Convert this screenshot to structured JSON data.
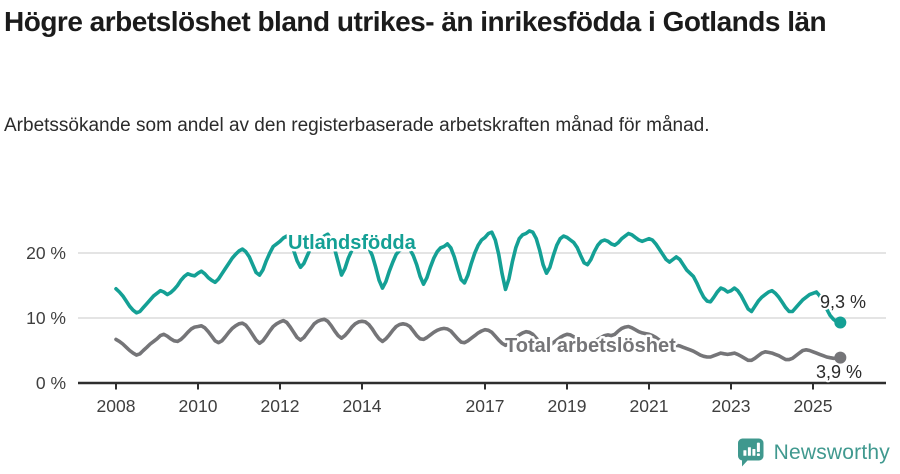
{
  "header": {
    "title": "Högre arbetslöshet bland utrikes- än inrikesfödda i Gotlands län",
    "subtitle": "Arbetssökande som andel av den registerbaserade arbetskraften månad för månad."
  },
  "footer": {
    "brand": "Newsworthy",
    "logo_icon": "bar-chart-speech-bubble-icon"
  },
  "colors": {
    "foreign_born_line": "#14A095",
    "total_line": "#757578",
    "title_text": "#1b1b1b",
    "body_text": "#2b2b2b",
    "axis_line": "#2e2e2e",
    "tick_label": "#3f3f3f",
    "gridline": "#dcdcdc",
    "value_label": "#2b2b2b",
    "brand_teal": "#40998F",
    "background": "#ffffff"
  },
  "chart_data": {
    "type": "line",
    "title": "Högre arbetslöshet bland utrikes- än inrikesfödda i Gotlands län",
    "subtitle": "Arbetssökande som andel av den registerbaserade arbetskraften månad för månad.",
    "x_unit": "month",
    "x_start_year": 2008,
    "x_end_decimal_year": 2025.67,
    "xlim": [
      2007.1,
      2026.1
    ],
    "ylim": [
      0,
      25
    ],
    "grid": "horizontal",
    "legend_position": "inline-labels",
    "x_tick_years": [
      2008,
      2010,
      2012,
      2014,
      2017,
      2019,
      2021,
      2023,
      2025
    ],
    "x_tick_labels": [
      "2008",
      "2010",
      "2012",
      "2014",
      "2017",
      "2019",
      "2021",
      "2023",
      "2025"
    ],
    "y_ticks": [
      0,
      10,
      20
    ],
    "y_tick_labels": [
      "0 %",
      "10 %",
      "20 %"
    ],
    "series": [
      {
        "name": "Utlandsfödda",
        "color": "#14A095",
        "end_value": 9.3,
        "end_label": "9,3 %",
        "values": [
          14.5,
          14.0,
          13.4,
          12.6,
          11.8,
          11.2,
          10.8,
          11.0,
          11.6,
          12.2,
          12.8,
          13.4,
          13.8,
          14.2,
          14.0,
          13.6,
          13.9,
          14.4,
          15.0,
          15.8,
          16.4,
          16.8,
          16.6,
          16.5,
          16.9,
          17.2,
          16.8,
          16.2,
          15.8,
          15.5,
          16.0,
          16.8,
          17.6,
          18.4,
          19.2,
          19.8,
          20.3,
          20.6,
          20.2,
          19.4,
          18.2,
          17.0,
          16.6,
          17.4,
          18.8,
          20.0,
          21.0,
          21.4,
          21.8,
          22.3,
          22.6,
          21.8,
          20.4,
          18.8,
          17.8,
          18.4,
          19.6,
          20.8,
          21.6,
          21.8,
          22.0,
          22.6,
          22.9,
          22.0,
          20.6,
          18.6,
          16.6,
          17.6,
          19.2,
          20.4,
          21.0,
          21.2,
          21.0,
          21.4,
          20.8,
          19.6,
          17.8,
          15.8,
          14.6,
          15.6,
          17.2,
          18.6,
          19.8,
          20.4,
          20.6,
          21.0,
          20.6,
          19.6,
          18.2,
          16.4,
          15.2,
          16.2,
          17.8,
          19.2,
          20.2,
          20.8,
          21.0,
          21.4,
          20.8,
          19.4,
          17.6,
          15.9,
          15.4,
          16.6,
          18.4,
          20.0,
          21.2,
          22.0,
          22.4,
          23.0,
          23.2,
          22.0,
          19.8,
          16.8,
          14.4,
          16.0,
          18.6,
          20.8,
          22.2,
          22.8,
          23.0,
          23.4,
          23.2,
          22.2,
          20.4,
          18.2,
          16.9,
          17.8,
          19.6,
          21.2,
          22.2,
          22.6,
          22.4,
          22.0,
          21.6,
          20.8,
          19.6,
          18.5,
          18.2,
          19.0,
          20.2,
          21.2,
          21.8,
          22.0,
          21.8,
          21.4,
          21.2,
          21.6,
          22.2,
          22.6,
          23.0,
          22.8,
          22.4,
          22.0,
          21.8,
          22.0,
          22.2,
          22.0,
          21.4,
          20.6,
          19.8,
          19.0,
          18.6,
          19.0,
          19.4,
          19.0,
          18.2,
          17.4,
          16.9,
          16.4,
          15.4,
          14.2,
          13.2,
          12.6,
          12.5,
          13.2,
          14.0,
          14.6,
          14.4,
          14.0,
          14.2,
          14.6,
          14.2,
          13.4,
          12.4,
          11.4,
          11.0,
          11.8,
          12.6,
          13.2,
          13.6,
          14.0,
          14.2,
          13.8,
          13.2,
          12.4,
          11.6,
          11.0,
          11.0,
          11.6,
          12.2,
          12.8,
          13.2,
          13.6,
          13.8,
          14.0,
          13.4,
          12.4,
          11.4,
          10.4,
          9.8,
          9.4,
          9.3
        ]
      },
      {
        "name": "Total arbetslöshet",
        "color": "#757578",
        "end_value": 3.9,
        "end_label": "3,9 %",
        "values": [
          6.7,
          6.4,
          6.0,
          5.5,
          5.0,
          4.6,
          4.3,
          4.5,
          5.0,
          5.5,
          6.0,
          6.4,
          6.8,
          7.3,
          7.5,
          7.2,
          6.8,
          6.5,
          6.4,
          6.7,
          7.2,
          7.8,
          8.3,
          8.6,
          8.7,
          8.8,
          8.5,
          7.9,
          7.2,
          6.5,
          6.2,
          6.5,
          7.1,
          7.8,
          8.4,
          8.8,
          9.1,
          9.2,
          8.9,
          8.2,
          7.4,
          6.6,
          6.1,
          6.5,
          7.2,
          8.0,
          8.7,
          9.1,
          9.4,
          9.6,
          9.3,
          8.6,
          7.8,
          7.0,
          6.6,
          7.0,
          7.7,
          8.4,
          9.1,
          9.5,
          9.7,
          9.8,
          9.5,
          8.8,
          8.0,
          7.3,
          6.9,
          7.3,
          7.9,
          8.6,
          9.1,
          9.4,
          9.5,
          9.4,
          9.0,
          8.3,
          7.5,
          6.8,
          6.4,
          6.8,
          7.4,
          8.1,
          8.7,
          9.0,
          9.1,
          9.0,
          8.7,
          8.0,
          7.3,
          6.8,
          6.7,
          7.0,
          7.4,
          7.8,
          8.1,
          8.3,
          8.4,
          8.3,
          8.0,
          7.4,
          6.8,
          6.3,
          6.2,
          6.5,
          6.9,
          7.3,
          7.7,
          8.0,
          8.2,
          8.1,
          7.8,
          7.2,
          6.6,
          6.1,
          5.8,
          6.1,
          6.5,
          7.0,
          7.4,
          7.7,
          7.9,
          7.8,
          7.5,
          6.9,
          6.3,
          5.8,
          5.5,
          5.8,
          6.2,
          6.6,
          7.0,
          7.3,
          7.5,
          7.4,
          7.1,
          6.6,
          6.1,
          5.7,
          5.6,
          5.9,
          6.3,
          6.7,
          7.0,
          7.3,
          7.4,
          7.3,
          7.5,
          8.0,
          8.4,
          8.6,
          8.7,
          8.5,
          8.2,
          7.9,
          7.7,
          7.6,
          7.5,
          7.3,
          7.0,
          6.6,
          6.2,
          5.8,
          5.6,
          5.7,
          5.8,
          5.7,
          5.5,
          5.3,
          5.1,
          4.9,
          4.6,
          4.3,
          4.1,
          4.0,
          4.0,
          4.2,
          4.4,
          4.6,
          4.5,
          4.4,
          4.5,
          4.6,
          4.4,
          4.1,
          3.8,
          3.5,
          3.5,
          3.8,
          4.2,
          4.6,
          4.8,
          4.7,
          4.6,
          4.4,
          4.2,
          3.9,
          3.6,
          3.6,
          3.8,
          4.2,
          4.6,
          5.0,
          5.1,
          5.0,
          4.8,
          4.6,
          4.4,
          4.2,
          4.0,
          3.9,
          3.8,
          3.8,
          3.9
        ]
      }
    ]
  }
}
